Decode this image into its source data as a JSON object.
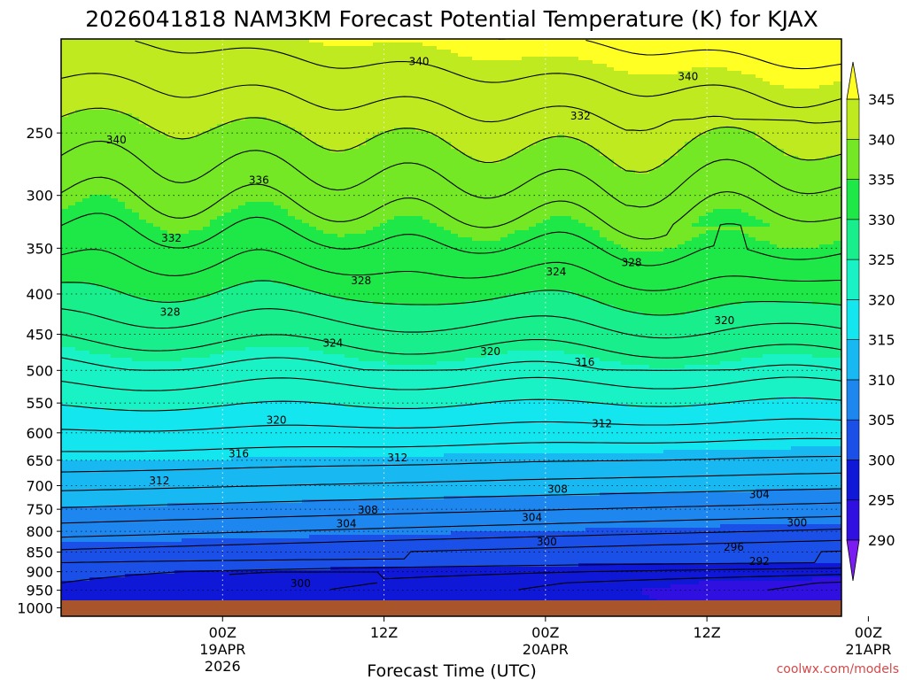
{
  "chart_data": {
    "type": "heatmap",
    "title": "2026041818 NAM3KM Forecast Potential Temperature (K) for KJAX",
    "xlabel": "Forecast Time (UTC)",
    "ylabel": "",
    "x_hours_range": [
      -6,
      52
    ],
    "yaxis_scale": "log-pressure",
    "ylim": [
      1025,
      190
    ],
    "y_ticks": [
      {
        "p": 250,
        "label": "250"
      },
      {
        "p": 300,
        "label": "300"
      },
      {
        "p": 350,
        "label": "350"
      },
      {
        "p": 400,
        "label": "400"
      },
      {
        "p": 450,
        "label": "450"
      },
      {
        "p": 500,
        "label": "500"
      },
      {
        "p": 550,
        "label": "550"
      },
      {
        "p": 600,
        "label": "600"
      },
      {
        "p": 650,
        "label": "650"
      },
      {
        "p": 700,
        "label": "700"
      },
      {
        "p": 750,
        "label": "750"
      },
      {
        "p": 800,
        "label": "800"
      },
      {
        "p": 850,
        "label": "850"
      },
      {
        "p": 900,
        "label": "900"
      },
      {
        "p": 950,
        "label": "950"
      },
      {
        "p": 1000,
        "label": "1000"
      }
    ],
    "x_ticks": [
      {
        "hour": 6,
        "lines": [
          "00Z",
          "19APR",
          "2026"
        ]
      },
      {
        "hour": 18,
        "lines": [
          "12Z"
        ]
      },
      {
        "hour": 30,
        "lines": [
          "00Z",
          "20APR"
        ]
      },
      {
        "hour": 42,
        "lines": [
          "12Z"
        ]
      },
      {
        "hour": 54,
        "lines": [
          "00Z",
          "21APR"
        ]
      }
    ],
    "colorbar": {
      "levels": [
        290,
        295,
        300,
        305,
        310,
        315,
        320,
        325,
        330,
        335,
        340,
        345
      ],
      "labels": [
        "290",
        "295",
        "300",
        "305",
        "310",
        "315",
        "320",
        "325",
        "330",
        "335",
        "340",
        "345"
      ],
      "colors": [
        "#7a1cf2",
        "#3010e0",
        "#1018d8",
        "#1a50e8",
        "#1e86ef",
        "#18b8f2",
        "#14e6f0",
        "#18f2c4",
        "#18ee8c",
        "#1ee848",
        "#74e824",
        "#c0ea20",
        "#ffff24"
      ]
    },
    "contour_labels": [
      {
        "label": "340",
        "hour": 20.6,
        "p": 203
      },
      {
        "label": "340",
        "hour": 40.6,
        "p": 212
      },
      {
        "label": "340",
        "hour": -1.9,
        "p": 255
      },
      {
        "label": "332",
        "hour": 32.6,
        "p": 238
      },
      {
        "label": "336",
        "hour": 8.7,
        "p": 287
      },
      {
        "label": "332",
        "hour": 2.2,
        "p": 340
      },
      {
        "label": "328",
        "hour": 36.4,
        "p": 365
      },
      {
        "label": "328",
        "hour": 16.3,
        "p": 385
      },
      {
        "label": "324",
        "hour": 30.8,
        "p": 375
      },
      {
        "label": "328",
        "hour": 2.1,
        "p": 422
      },
      {
        "label": "320",
        "hour": 43.3,
        "p": 432
      },
      {
        "label": "324",
        "hour": 14.2,
        "p": 462
      },
      {
        "label": "320",
        "hour": 25.9,
        "p": 473
      },
      {
        "label": "316",
        "hour": 32.9,
        "p": 488
      },
      {
        "label": "320",
        "hour": 10.0,
        "p": 578
      },
      {
        "label": "312",
        "hour": 34.2,
        "p": 584
      },
      {
        "label": "316",
        "hour": 7.2,
        "p": 638
      },
      {
        "label": "312",
        "hour": 19.0,
        "p": 645
      },
      {
        "label": "312",
        "hour": 1.3,
        "p": 690
      },
      {
        "label": "308",
        "hour": 30.9,
        "p": 707
      },
      {
        "label": "304",
        "hour": 45.9,
        "p": 718
      },
      {
        "label": "308",
        "hour": 16.8,
        "p": 752
      },
      {
        "label": "304",
        "hour": 29.0,
        "p": 768
      },
      {
        "label": "304",
        "hour": 15.2,
        "p": 782
      },
      {
        "label": "300",
        "hour": 48.7,
        "p": 780
      },
      {
        "label": "300",
        "hour": 30.1,
        "p": 825
      },
      {
        "label": "296",
        "hour": 44.0,
        "p": 838
      },
      {
        "label": "292",
        "hour": 45.9,
        "p": 873
      },
      {
        "label": "300",
        "hour": 11.8,
        "p": 932
      }
    ]
  },
  "watermark": "coolwx.com/models"
}
